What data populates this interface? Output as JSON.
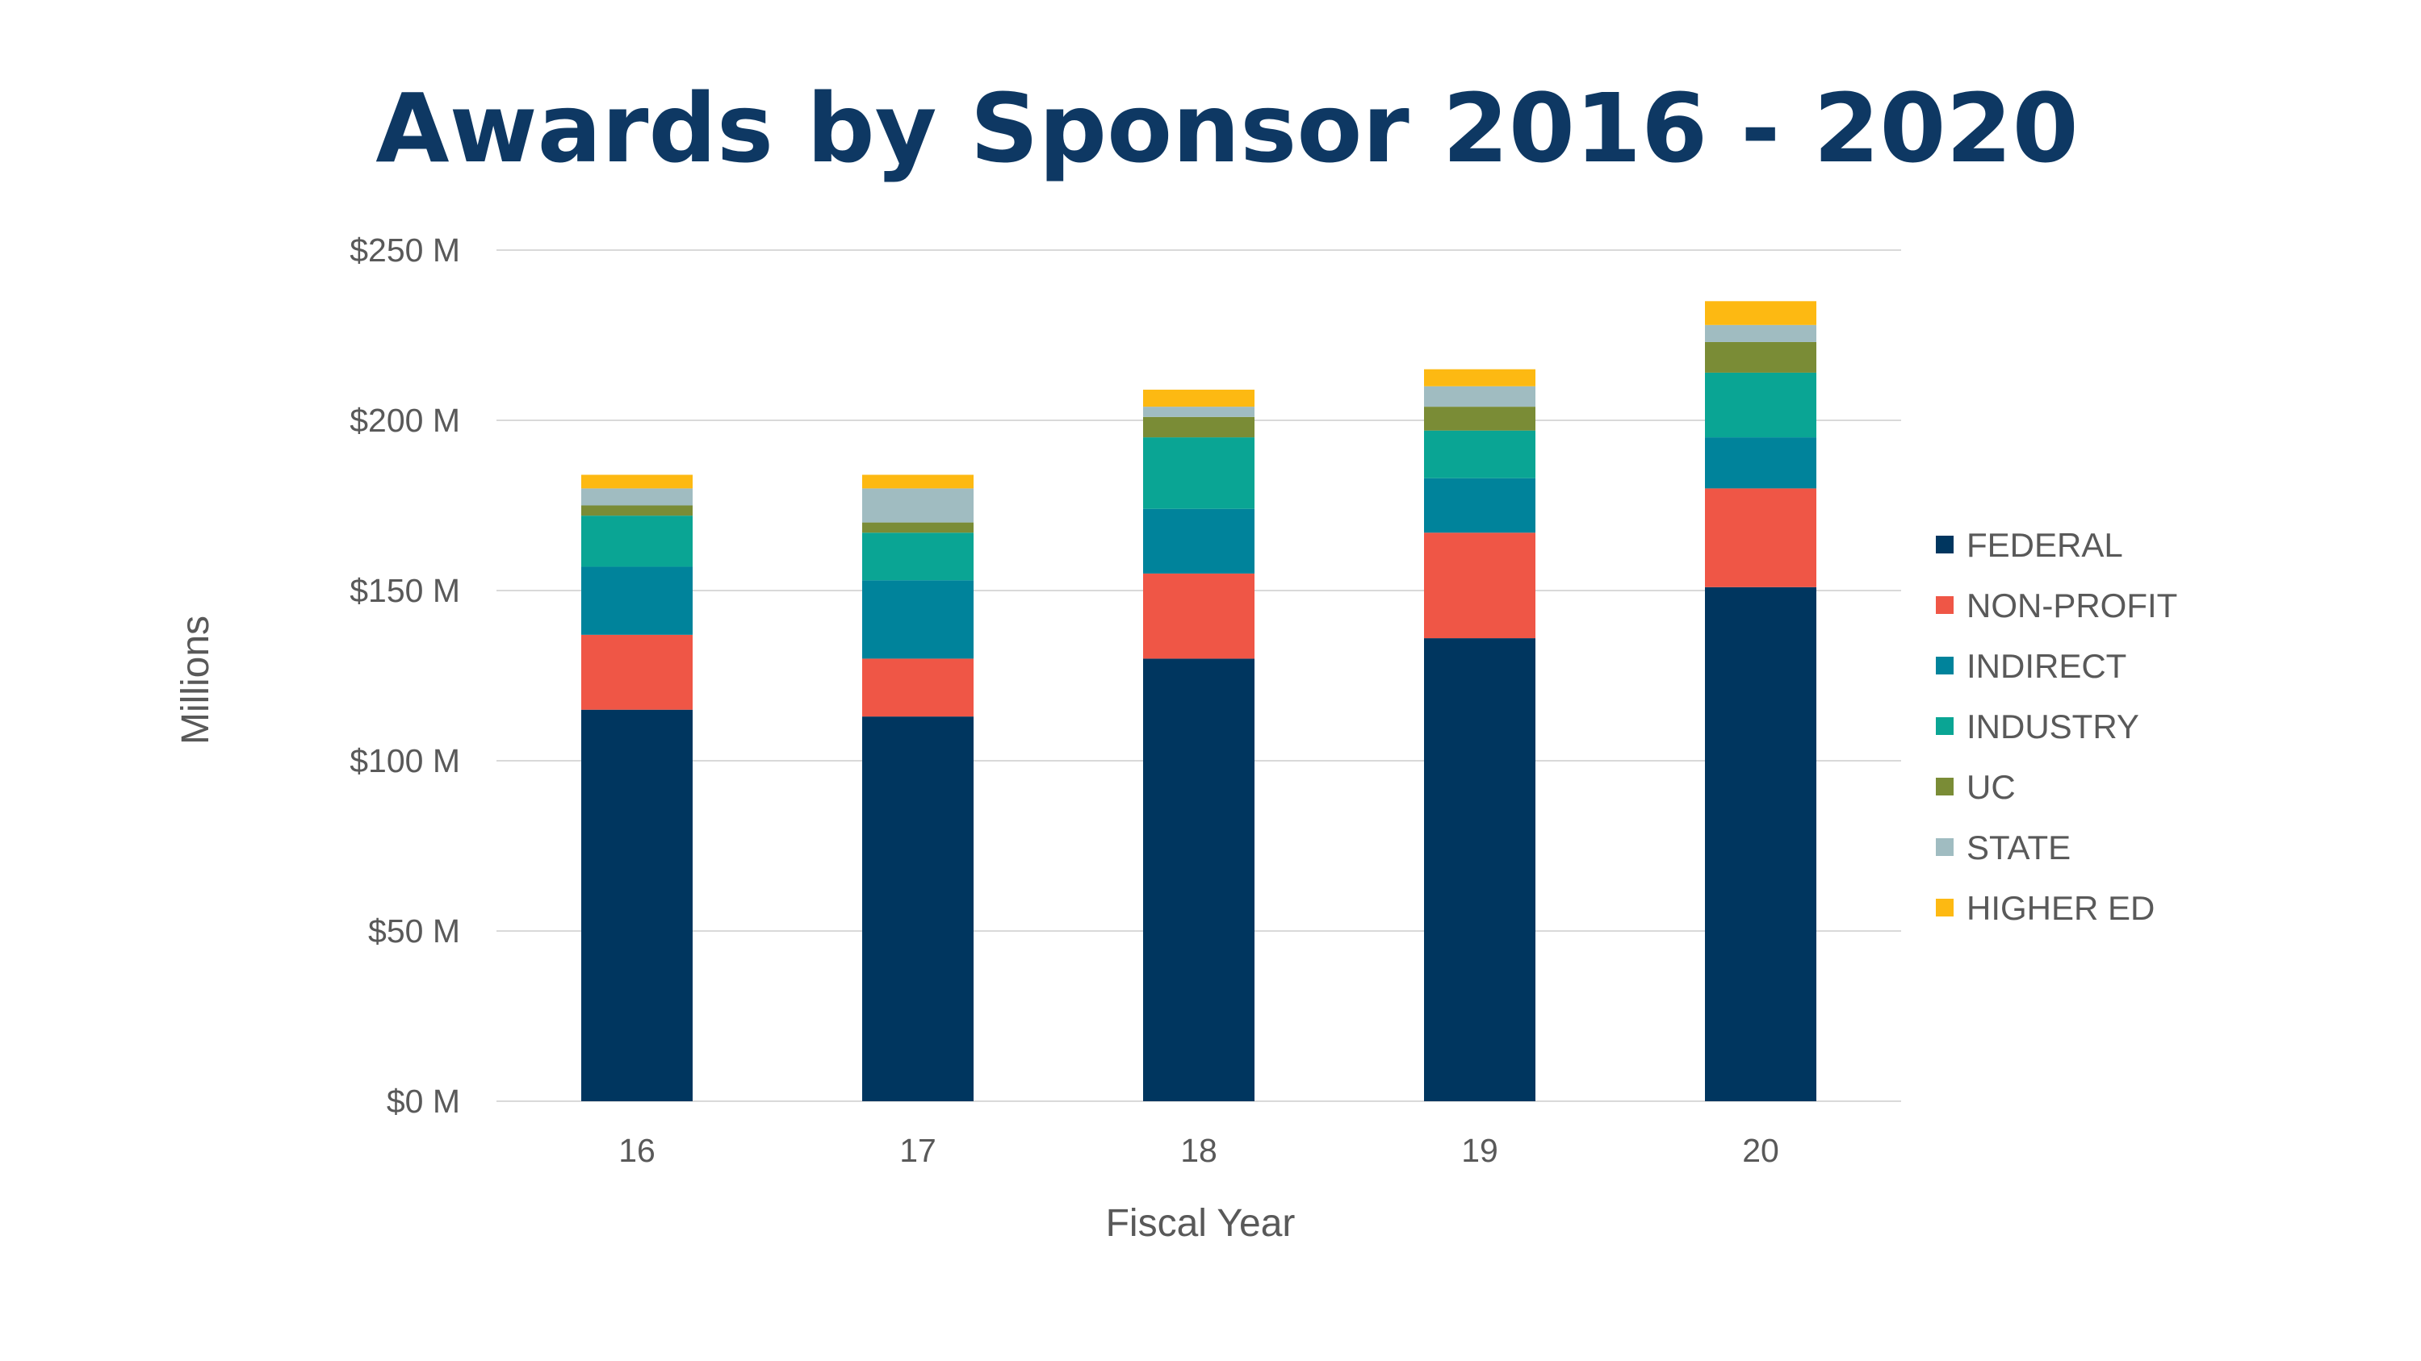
{
  "chart_data": {
    "type": "bar",
    "stacked": true,
    "title": "Awards by Sponsor 2016 - 2020",
    "xlabel": "Fiscal Year",
    "ylabel": "Millions",
    "categories": [
      "16",
      "17",
      "18",
      "19",
      "20"
    ],
    "ylim": [
      0,
      250
    ],
    "yticks": [
      0,
      50,
      100,
      150,
      200,
      250
    ],
    "ytick_labels": [
      "$0 M",
      "$50 M",
      "$100 M",
      "$150 M",
      "$200 M",
      "$250 M"
    ],
    "grid": true,
    "legend_position": "right",
    "series": [
      {
        "name": "FEDERAL",
        "color": "#00365f",
        "values": [
          115,
          113,
          130,
          136,
          151
        ]
      },
      {
        "name": "NON-PROFIT",
        "color": "#ef5646",
        "values": [
          22,
          17,
          25,
          31,
          29
        ]
      },
      {
        "name": "INDIRECT",
        "color": "#00839b",
        "values": [
          20,
          23,
          19,
          16,
          15
        ]
      },
      {
        "name": "INDUSTRY",
        "color": "#0aa594",
        "values": [
          15,
          14,
          21,
          14,
          19
        ]
      },
      {
        "name": "UC",
        "color": "#7a8c36",
        "values": [
          3,
          3,
          6,
          7,
          9
        ]
      },
      {
        "name": "STATE",
        "color": "#a0bcc1",
        "values": [
          5,
          10,
          3,
          6,
          5
        ]
      },
      {
        "name": "HIGHER ED",
        "color": "#fdb912",
        "values": [
          4,
          4,
          5,
          5,
          7
        ]
      }
    ]
  }
}
